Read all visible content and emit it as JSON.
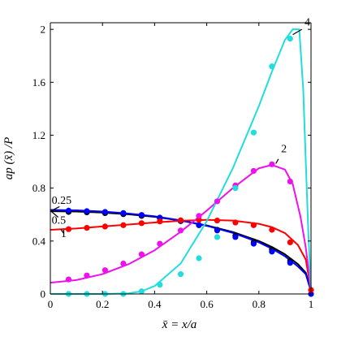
{
  "chart_data": {
    "type": "line",
    "title": "",
    "xlabel": "x̄ = x/a",
    "ylabel": "ap (x̄) /P",
    "xlim": [
      0,
      1
    ],
    "ylim": [
      0,
      2.05
    ],
    "xticks": [
      0,
      0.2,
      0.4,
      0.6,
      0.8,
      1
    ],
    "yticks": [
      0,
      0.4,
      0.8,
      1.2,
      1.6,
      2
    ],
    "xtick_labels": [
      "0",
      "0.2",
      "0.4",
      "0.6",
      "0.8",
      "1"
    ],
    "ytick_labels": [
      "0",
      "0.4",
      "0.8",
      "1.2",
      "1.6",
      "2"
    ],
    "grid": false,
    "legend": "none",
    "series": [
      {
        "name": "0.25",
        "color": "#000000",
        "line": {
          "x": [
            0,
            0.1,
            0.2,
            0.3,
            0.4,
            0.5,
            0.6,
            0.7,
            0.8,
            0.85,
            0.9,
            0.95,
            0.98,
            1.0
          ],
          "y": [
            0.625,
            0.623,
            0.615,
            0.602,
            0.583,
            0.555,
            0.518,
            0.468,
            0.4,
            0.355,
            0.3,
            0.225,
            0.16,
            0.03
          ]
        },
        "points": {
          "x": [
            0.07,
            0.14,
            0.21,
            0.28,
            0.35,
            0.42,
            0.5,
            0.57,
            0.64,
            0.71,
            0.78,
            0.85,
            0.92
          ],
          "y": [
            0.62,
            0.617,
            0.611,
            0.603,
            0.59,
            0.573,
            0.55,
            0.52,
            0.485,
            0.44,
            0.39,
            0.335,
            0.25
          ]
        }
      },
      {
        "name": "0.5",
        "color": "#0000ff",
        "line": {
          "x": [
            0,
            0.1,
            0.2,
            0.3,
            0.4,
            0.5,
            0.6,
            0.7,
            0.8,
            0.85,
            0.9,
            0.95,
            0.98,
            1.0
          ],
          "y": [
            0.635,
            0.632,
            0.623,
            0.608,
            0.587,
            0.556,
            0.515,
            0.462,
            0.39,
            0.342,
            0.285,
            0.208,
            0.15,
            0.02
          ]
        },
        "points": {
          "x": [
            0.07,
            0.14,
            0.21,
            0.28,
            0.35,
            0.42,
            0.5,
            0.57,
            0.64,
            0.71,
            0.78,
            0.85,
            0.92,
            1.0
          ],
          "y": [
            0.63,
            0.626,
            0.62,
            0.612,
            0.597,
            0.577,
            0.553,
            0.52,
            0.48,
            0.43,
            0.38,
            0.32,
            0.235,
            0.0
          ]
        }
      },
      {
        "name": "1",
        "color": "#ff0000",
        "line": {
          "x": [
            0,
            0.1,
            0.2,
            0.3,
            0.4,
            0.5,
            0.6,
            0.7,
            0.8,
            0.85,
            0.9,
            0.95,
            0.98,
            1.0
          ],
          "y": [
            0.485,
            0.495,
            0.51,
            0.525,
            0.54,
            0.553,
            0.56,
            0.555,
            0.53,
            0.505,
            0.46,
            0.37,
            0.26,
            0.03
          ]
        },
        "points": {
          "x": [
            0.07,
            0.14,
            0.21,
            0.28,
            0.35,
            0.42,
            0.5,
            0.57,
            0.64,
            0.71,
            0.78,
            0.85,
            0.92,
            1.0
          ],
          "y": [
            0.49,
            0.5,
            0.51,
            0.52,
            0.535,
            0.548,
            0.557,
            0.56,
            0.555,
            0.54,
            0.52,
            0.485,
            0.39,
            0.03
          ]
        }
      },
      {
        "name": "2",
        "color": "#ee11ee",
        "line": {
          "x": [
            0,
            0.1,
            0.2,
            0.3,
            0.4,
            0.5,
            0.6,
            0.7,
            0.8,
            0.85,
            0.9,
            0.93,
            0.96,
            0.98,
            1.0
          ],
          "y": [
            0.085,
            0.105,
            0.15,
            0.225,
            0.33,
            0.47,
            0.63,
            0.8,
            0.95,
            0.975,
            0.94,
            0.83,
            0.58,
            0.35,
            0.03
          ]
        },
        "points": {
          "x": [
            0.07,
            0.14,
            0.21,
            0.28,
            0.35,
            0.42,
            0.5,
            0.57,
            0.64,
            0.71,
            0.78,
            0.85,
            0.92
          ],
          "y": [
            0.11,
            0.14,
            0.18,
            0.23,
            0.3,
            0.38,
            0.48,
            0.59,
            0.7,
            0.82,
            0.93,
            0.98,
            0.85
          ]
        }
      },
      {
        "name": "4",
        "color": "#22dddd",
        "line": {
          "x": [
            0,
            0.1,
            0.2,
            0.3,
            0.35,
            0.4,
            0.5,
            0.6,
            0.7,
            0.8,
            0.85,
            0.9,
            0.93,
            0.955,
            0.97,
            0.98,
            0.99,
            1.0
          ],
          "y": [
            0.0,
            0.0,
            0.0,
            0.005,
            0.02,
            0.06,
            0.23,
            0.55,
            0.95,
            1.42,
            1.68,
            1.92,
            2.0,
            2.0,
            1.55,
            1.0,
            0.45,
            0.03
          ]
        },
        "points": {
          "x": [
            0.07,
            0.14,
            0.21,
            0.28,
            0.35,
            0.42,
            0.5,
            0.57,
            0.64,
            0.71,
            0.78,
            0.85,
            0.92
          ],
          "y": [
            0.0,
            0.0,
            0.0,
            0.0,
            0.02,
            0.07,
            0.15,
            0.27,
            0.43,
            0.8,
            1.22,
            1.72,
            1.93
          ]
        }
      }
    ],
    "annotations": [
      {
        "text": "4",
        "x": 0.975,
        "y": 2.03,
        "arrow_from": [
          0.965,
          2.0
        ],
        "arrow_to": [
          0.93,
          1.96
        ]
      },
      {
        "text": "2",
        "x": 0.885,
        "y": 1.07,
        "arrow_from": [
          0.875,
          1.02
        ],
        "arrow_to": [
          0.865,
          0.985
        ]
      },
      {
        "text": "0.25",
        "x": 0.005,
        "y": 0.68,
        "arrow_from": [
          0.035,
          0.66
        ],
        "arrow_to": [
          0.0,
          0.625
        ]
      },
      {
        "text": "0.5",
        "x": 0.005,
        "y": 0.53,
        "arrow_from": [
          0.03,
          0.58
        ],
        "arrow_to": [
          0.0,
          0.63
        ]
      },
      {
        "text": "1",
        "x": 0.04,
        "y": 0.43,
        "arrow_from": [
          0.05,
          0.46
        ],
        "arrow_to": [
          0.04,
          0.49
        ]
      }
    ]
  }
}
